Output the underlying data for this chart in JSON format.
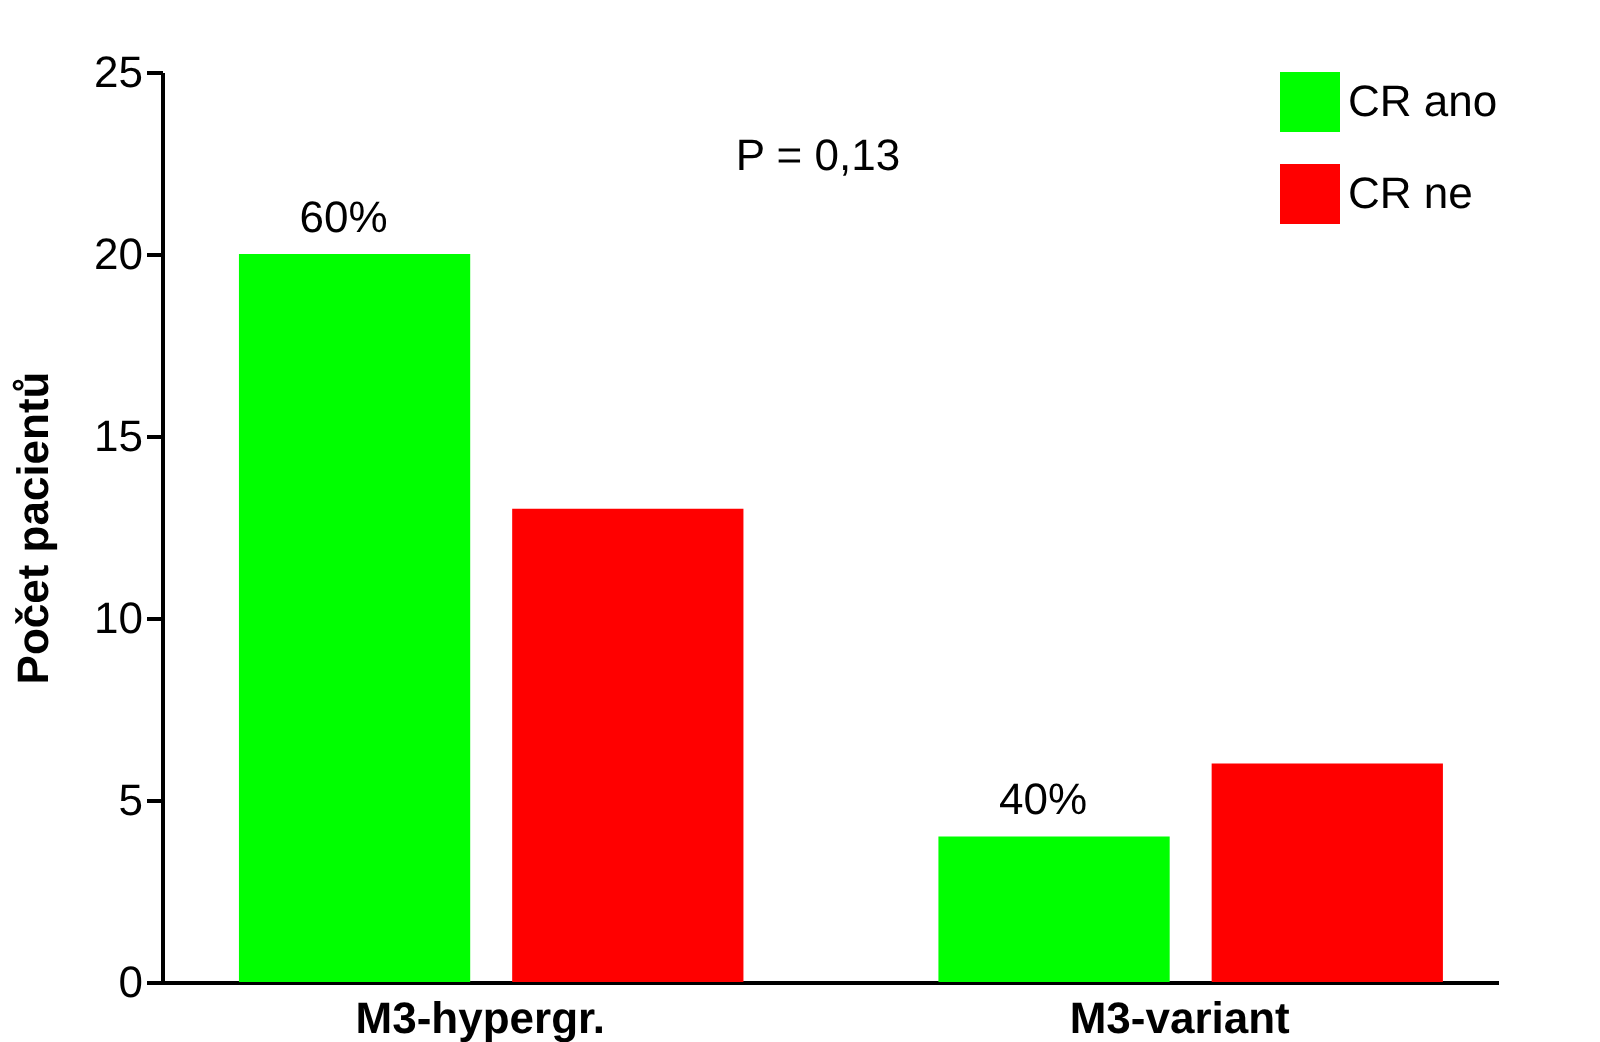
{
  "chart_data": {
    "type": "bar",
    "ylabel": "Počet pacientů",
    "categories": [
      "M3-hypergr.",
      "M3-variant"
    ],
    "series": [
      {
        "name": "CR ano",
        "color": "#00ff00",
        "values": [
          20,
          4
        ]
      },
      {
        "name": "CR ne",
        "color": "#ff0000",
        "values": [
          13,
          6
        ]
      }
    ],
    "ylim": [
      0,
      25
    ],
    "yticks": [
      0,
      5,
      10,
      15,
      20,
      25
    ],
    "grid": false,
    "legend": "top right",
    "annotations": [
      "P = 0,13",
      "60%",
      "40%"
    ]
  }
}
